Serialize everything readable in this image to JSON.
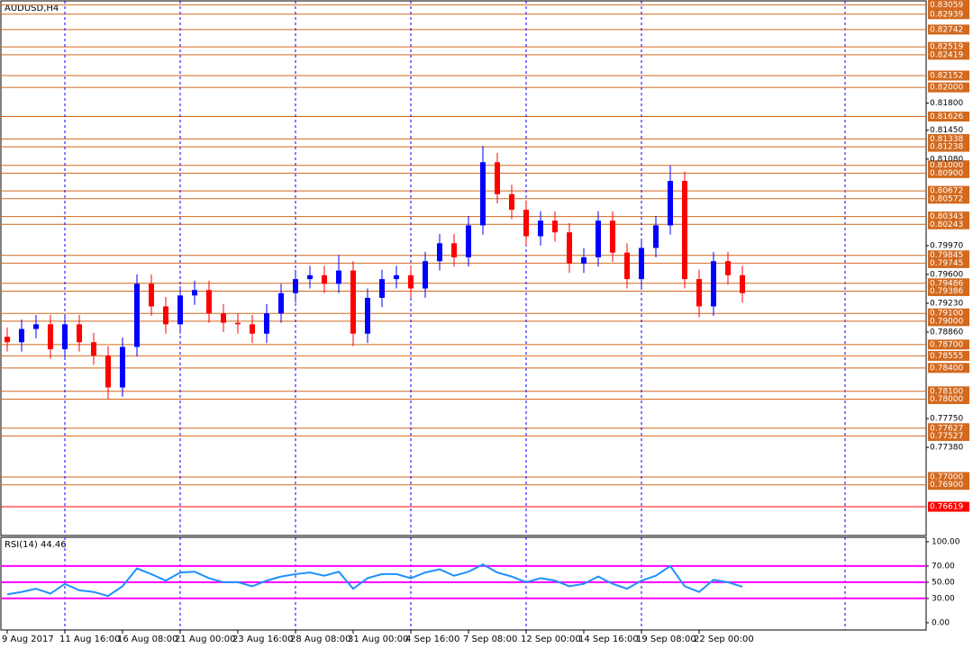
{
  "chart_data": [
    {
      "type": "candlestick",
      "title": "AUDUSD,H4",
      "categories": [
        "9 Aug 2017",
        null,
        null,
        null,
        "11 Aug 16:00",
        null,
        null,
        null,
        "16 Aug 08:00",
        null,
        null,
        null,
        "21 Aug 00:00",
        null,
        null,
        null,
        "23 Aug 16:00",
        null,
        null,
        null,
        "28 Aug 08:00",
        null,
        null,
        null,
        "31 Aug 00:00",
        null,
        null,
        null,
        "4 Sep 16:00",
        null,
        null,
        null,
        "7 Sep 08:00",
        null,
        null,
        null,
        "12 Sep 00:00",
        null,
        null,
        null,
        "14 Sep 16:00",
        null,
        null,
        null,
        "19 Sep 08:00",
        null,
        null,
        null,
        "22 Sep 00:00",
        null,
        null,
        null
      ],
      "open": [
        0.788,
        0.7873,
        0.789,
        0.7896,
        0.7864,
        0.7896,
        0.7873,
        0.7856,
        0.7815,
        0.7867,
        0.7948,
        0.7919,
        0.7896,
        0.7933,
        0.794,
        0.791,
        0.7898,
        0.7896,
        0.7884,
        0.791,
        0.7936,
        0.7954,
        0.7959,
        0.7948,
        0.7965,
        0.7884,
        0.793,
        0.7954,
        0.7959,
        0.7942,
        0.7977,
        0.8,
        0.7982,
        0.8023,
        0.8104,
        0.8063,
        0.8043,
        0.8009,
        0.8029,
        0.8014,
        0.7974,
        0.7982,
        0.8029,
        0.7988,
        0.7954,
        0.7994,
        0.8023,
        0.808,
        0.7954,
        0.7919,
        0.7977,
        0.7959
      ],
      "high": [
        0.7892,
        0.7902,
        0.7908,
        0.7908,
        0.7908,
        0.7908,
        0.7885,
        0.7868,
        0.7879,
        0.796,
        0.796,
        0.7931,
        0.7945,
        0.7952,
        0.7952,
        0.7922,
        0.791,
        0.7908,
        0.7922,
        0.7948,
        0.7966,
        0.7971,
        0.7971,
        0.7985,
        0.7977,
        0.7942,
        0.7966,
        0.7971,
        0.7971,
        0.7989,
        0.8012,
        0.8012,
        0.8035,
        0.8125,
        0.8116,
        0.8075,
        0.8055,
        0.8041,
        0.8041,
        0.8026,
        0.7994,
        0.8041,
        0.8041,
        0.8,
        0.8006,
        0.8035,
        0.81,
        0.8092,
        0.7966,
        0.7989,
        0.7989,
        0.7971
      ],
      "low": [
        0.7861,
        0.7861,
        0.7878,
        0.7852,
        0.7852,
        0.7861,
        0.7844,
        0.78,
        0.7803,
        0.7855,
        0.7907,
        0.7884,
        0.7884,
        0.7921,
        0.7898,
        0.7886,
        0.7884,
        0.7872,
        0.7872,
        0.7898,
        0.7924,
        0.7942,
        0.7936,
        0.7936,
        0.7868,
        0.7872,
        0.7918,
        0.7942,
        0.793,
        0.793,
        0.7965,
        0.797,
        0.797,
        0.8011,
        0.8051,
        0.8031,
        0.7997,
        0.7997,
        0.8002,
        0.7962,
        0.7962,
        0.797,
        0.7976,
        0.7942,
        0.7942,
        0.7982,
        0.8011,
        0.7942,
        0.7905,
        0.7907,
        0.7947,
        0.7924
      ],
      "close": [
        0.7873,
        0.789,
        0.7896,
        0.7864,
        0.7896,
        0.7873,
        0.7856,
        0.7815,
        0.7867,
        0.7948,
        0.7919,
        0.7896,
        0.7933,
        0.794,
        0.791,
        0.7898,
        0.7896,
        0.7884,
        0.791,
        0.7936,
        0.7954,
        0.7959,
        0.7948,
        0.7965,
        0.7884,
        0.793,
        0.7954,
        0.7959,
        0.7942,
        0.7977,
        0.8,
        0.7982,
        0.8023,
        0.8104,
        0.8063,
        0.8043,
        0.8009,
        0.8029,
        0.8014,
        0.7974,
        0.7982,
        0.8029,
        0.7988,
        0.7954,
        0.7994,
        0.8023,
        0.808,
        0.7954,
        0.7919,
        0.7977,
        0.7959,
        0.7936
      ],
      "up_color": "#0000ff",
      "down_color": "#ff0000",
      "ylim": [
        0.7625,
        0.8311
      ],
      "yticks": [
        {
          "value": 0.818,
          "label": "0.81800"
        },
        {
          "value": 0.8145,
          "label": "0.81450"
        },
        {
          "value": 0.8108,
          "label": "0.81080"
        },
        {
          "value": 0.7997,
          "label": "0.79970"
        },
        {
          "value": 0.796,
          "label": "0.79600"
        },
        {
          "value": 0.7923,
          "label": "0.79230"
        },
        {
          "value": 0.7886,
          "label": "0.78860"
        },
        {
          "value": 0.7775,
          "label": "0.77750"
        },
        {
          "value": 0.7738,
          "label": "0.77380"
        }
      ],
      "levels": [
        {
          "value": 0.83059,
          "label": "0.83059",
          "color": "#d2691e"
        },
        {
          "value": 0.82939,
          "label": "0.82939",
          "color": "#d2691e"
        },
        {
          "value": 0.82742,
          "label": "0.82742",
          "color": "#d2691e"
        },
        {
          "value": 0.82519,
          "label": "0.82519",
          "color": "#d2691e"
        },
        {
          "value": 0.82419,
          "label": "0.82419",
          "color": "#d2691e"
        },
        {
          "value": 0.82152,
          "label": "0.82152",
          "color": "#d2691e"
        },
        {
          "value": 0.82,
          "label": "0.82000",
          "color": "#d2691e"
        },
        {
          "value": 0.81626,
          "label": "0.81626",
          "color": "#d2691e"
        },
        {
          "value": 0.81338,
          "label": "0.81338",
          "color": "#d2691e"
        },
        {
          "value": 0.81238,
          "label": "0.81238",
          "color": "#d2691e"
        },
        {
          "value": 0.81,
          "label": "0.81000",
          "color": "#d2691e"
        },
        {
          "value": 0.809,
          "label": "0.80900",
          "color": "#d2691e"
        },
        {
          "value": 0.80672,
          "label": "0.80672",
          "color": "#d2691e"
        },
        {
          "value": 0.80572,
          "label": "0.80572",
          "color": "#d2691e"
        },
        {
          "value": 0.80343,
          "label": "0.80343",
          "color": "#d2691e"
        },
        {
          "value": 0.80243,
          "label": "0.80243",
          "color": "#d2691e"
        },
        {
          "value": 0.79845,
          "label": "0.79845",
          "color": "#d2691e"
        },
        {
          "value": 0.79745,
          "label": "0.79745",
          "color": "#d2691e"
        },
        {
          "value": 0.79486,
          "label": "0.79486",
          "color": "#d2691e"
        },
        {
          "value": 0.79386,
          "label": "0.79386",
          "color": "#d2691e"
        },
        {
          "value": 0.791,
          "label": "0.79100",
          "color": "#d2691e"
        },
        {
          "value": 0.79,
          "label": "0.79000",
          "color": "#d2691e"
        },
        {
          "value": 0.787,
          "label": "0.78700",
          "color": "#d2691e"
        },
        {
          "value": 0.78555,
          "label": "0.78555",
          "color": "#d2691e"
        },
        {
          "value": 0.784,
          "label": "0.78400",
          "color": "#d2691e"
        },
        {
          "value": 0.781,
          "label": "0.78100",
          "color": "#d2691e"
        },
        {
          "value": 0.78,
          "label": "0.78000",
          "color": "#d2691e"
        },
        {
          "value": 0.77627,
          "label": "0.77627",
          "color": "#d2691e"
        },
        {
          "value": 0.77527,
          "label": "0.77527",
          "color": "#d2691e"
        },
        {
          "value": 0.77,
          "label": "0.77000",
          "color": "#d2691e"
        },
        {
          "value": 0.769,
          "label": "0.76900",
          "color": "#d2691e"
        },
        {
          "value": 0.76619,
          "label": "0.76619",
          "color": "#ff0000"
        }
      ],
      "grid": true
    },
    {
      "type": "line",
      "title": "RSI(14) 44.46",
      "color": "#1e90ff",
      "values": [
        35,
        38,
        42,
        36,
        48,
        40,
        38,
        33,
        45,
        67,
        60,
        52,
        62,
        63,
        55,
        50,
        50,
        45,
        52,
        57,
        60,
        62,
        58,
        63,
        42,
        55,
        60,
        60,
        55,
        62,
        66,
        58,
        63,
        72,
        62,
        57,
        50,
        55,
        52,
        45,
        48,
        57,
        48,
        42,
        52,
        58,
        70,
        45,
        38,
        53,
        50,
        44.46
      ],
      "ylim": [
        -9,
        105.5
      ],
      "yticks": [
        {
          "value": 100,
          "label": "100.00"
        },
        {
          "value": 70,
          "label": "70.00"
        },
        {
          "value": 50,
          "label": "50.00"
        },
        {
          "value": 30,
          "label": "30.00"
        },
        {
          "value": 0,
          "label": "0.00"
        }
      ],
      "levels": [
        70,
        50,
        30
      ],
      "level_color": "#ff00ff"
    }
  ]
}
